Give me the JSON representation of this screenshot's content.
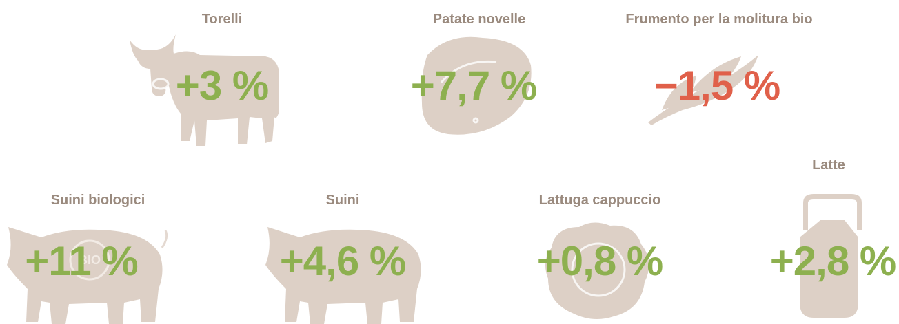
{
  "items": [
    {
      "label": "Torelli",
      "value": "+3 %"
    },
    {
      "label": "Patate novelle",
      "value": "+7,7 %"
    },
    {
      "label": "Frumento per la molitura bio",
      "value": "−1,5 %"
    },
    {
      "label": "Suini biologici",
      "value": "+11 %",
      "badge": "BIO"
    },
    {
      "label": "Suini",
      "value": "+4,6 %"
    },
    {
      "label": "Lattuga cappuccio",
      "value": "+0,8 %"
    },
    {
      "label": "Latte",
      "value": "+2,8 %"
    }
  ]
}
